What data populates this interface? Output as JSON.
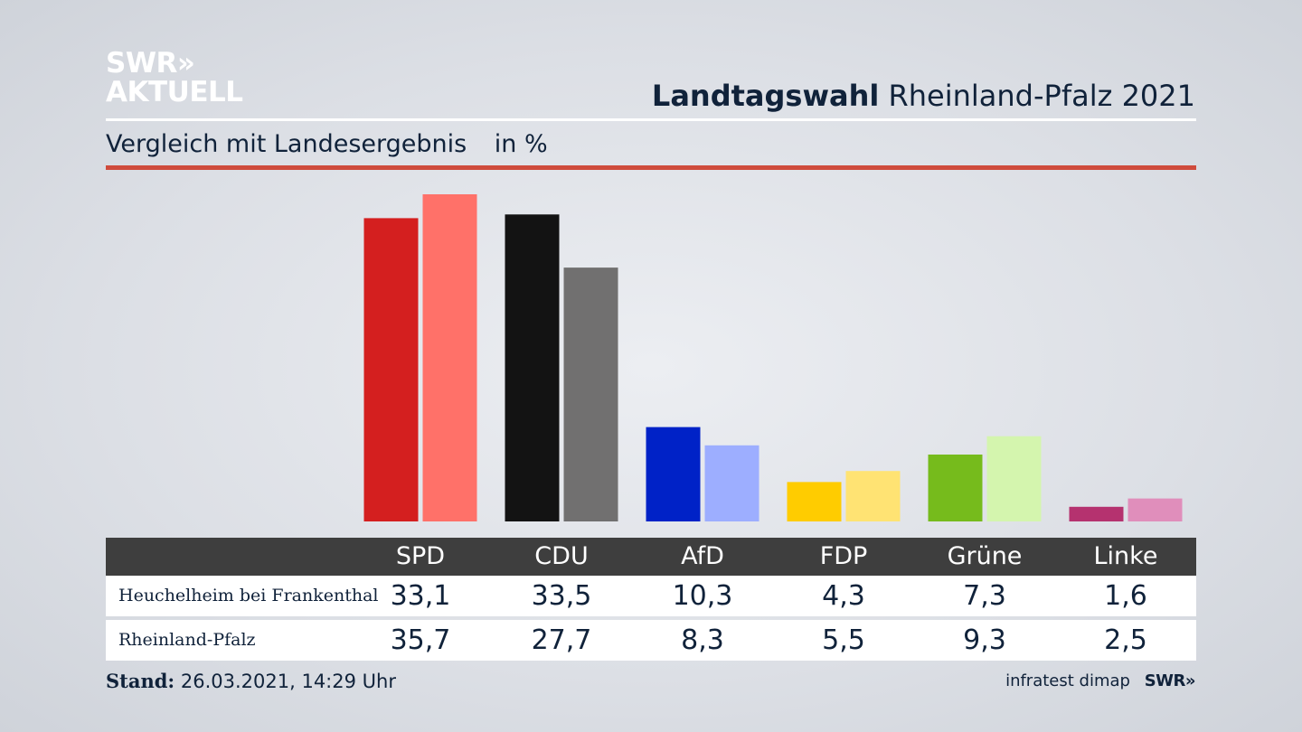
{
  "logo": {
    "line1": "SWR»",
    "line2": "AKTUELL"
  },
  "header": {
    "title_strong": "Landtagswahl",
    "title_rest": "Rheinland-Pfalz 2021",
    "subtitle": "Vergleich mit Landesergebnis",
    "unit": "in %"
  },
  "colors": {
    "red_rule": "#cf4b3c",
    "SPD": [
      "#d41f1f",
      "#ff7169"
    ],
    "CDU": [
      "#131313",
      "#717070"
    ],
    "AfD": [
      "#0022c7",
      "#9daeff"
    ],
    "FDP": [
      "#ffcc00",
      "#ffe373"
    ],
    "Grüne": [
      "#76bb1c",
      "#d4f5ae"
    ],
    "Linke": [
      "#b5326f",
      "#e08ebb"
    ]
  },
  "chart_data": {
    "type": "bar",
    "categories": [
      "SPD",
      "CDU",
      "AfD",
      "FDP",
      "Grüne",
      "Linke"
    ],
    "series": [
      {
        "name": "Heuchelheim bei Frankenthal",
        "values": [
          33.1,
          33.5,
          10.3,
          4.3,
          7.3,
          1.6
        ]
      },
      {
        "name": "Rheinland-Pfalz",
        "values": [
          35.7,
          27.7,
          8.3,
          5.5,
          9.3,
          2.5
        ]
      }
    ],
    "ylim": [
      0,
      35.7
    ]
  },
  "table": {
    "headers": [
      "SPD",
      "CDU",
      "AfD",
      "FDP",
      "Grüne",
      "Linke"
    ],
    "rows": [
      {
        "label": "Heuchelheim bei Frankenthal",
        "values": [
          "33,1",
          "33,5",
          "10,3",
          "4,3",
          "7,3",
          "1,6"
        ]
      },
      {
        "label": "Rheinland-Pfalz",
        "values": [
          "35,7",
          "27,7",
          "8,3",
          "5,5",
          "9,3",
          "2,5"
        ]
      }
    ]
  },
  "footer": {
    "stand_label": "Stand:",
    "stand_value": "26.03.2021, 14:29 Uhr",
    "source": "infratest dimap",
    "source_logo": "SWR»"
  }
}
